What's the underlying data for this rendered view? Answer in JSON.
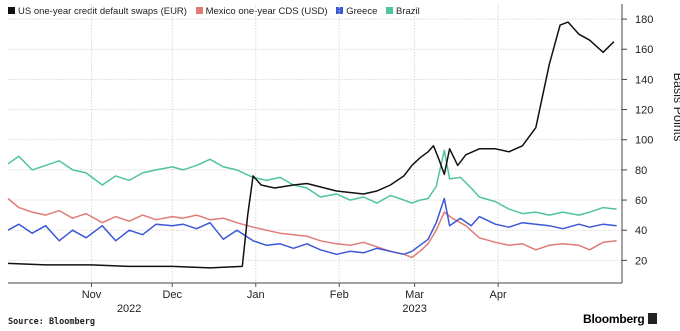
{
  "chart_data": {
    "type": "line",
    "title": "",
    "xlabel": "",
    "ylabel": "Basis Points",
    "ylim": [
      5,
      190
    ],
    "y_ticks": [
      20,
      40,
      60,
      80,
      100,
      120,
      140,
      160,
      180
    ],
    "x_start": "2022-10-01",
    "x_end": "2023-05-17",
    "x_ticks": [
      {
        "date": "2022-11-01",
        "label": "Nov"
      },
      {
        "date": "2022-12-01",
        "label": "Dec"
      },
      {
        "date": "2023-01-01",
        "label": "Jan"
      },
      {
        "date": "2023-02-01",
        "label": "Feb"
      },
      {
        "date": "2023-03-01",
        "label": "Mar"
      },
      {
        "date": "2023-04-01",
        "label": "Apr"
      }
    ],
    "year_labels": [
      {
        "date": "2022-11-15",
        "label": "2022"
      },
      {
        "date": "2023-03-01",
        "label": "2023"
      }
    ],
    "grid": true,
    "legend_position": "top-left",
    "series": [
      {
        "name": "Mexico one-year CDS (USD)",
        "color": "#e07b76",
        "points": [
          [
            "2022-10-01",
            61
          ],
          [
            "2022-10-05",
            55
          ],
          [
            "2022-10-10",
            52
          ],
          [
            "2022-10-15",
            50
          ],
          [
            "2022-10-20",
            53
          ],
          [
            "2022-10-25",
            48
          ],
          [
            "2022-10-30",
            51
          ],
          [
            "2022-11-05",
            45
          ],
          [
            "2022-11-10",
            49
          ],
          [
            "2022-11-15",
            46
          ],
          [
            "2022-11-20",
            50
          ],
          [
            "2022-11-25",
            47
          ],
          [
            "2022-12-01",
            49
          ],
          [
            "2022-12-05",
            48
          ],
          [
            "2022-12-10",
            50
          ],
          [
            "2022-12-15",
            47
          ],
          [
            "2022-12-20",
            48
          ],
          [
            "2022-12-25",
            45
          ],
          [
            "2022-12-31",
            42
          ],
          [
            "2023-01-05",
            40
          ],
          [
            "2023-01-10",
            38
          ],
          [
            "2023-01-15",
            37
          ],
          [
            "2023-01-20",
            36
          ],
          [
            "2023-01-25",
            33
          ],
          [
            "2023-01-31",
            31
          ],
          [
            "2023-02-05",
            30
          ],
          [
            "2023-02-10",
            32
          ],
          [
            "2023-02-15",
            29
          ],
          [
            "2023-02-20",
            26
          ],
          [
            "2023-02-25",
            24
          ],
          [
            "2023-02-28",
            22
          ],
          [
            "2023-03-03",
            26
          ],
          [
            "2023-03-06",
            31
          ],
          [
            "2023-03-09",
            40
          ],
          [
            "2023-03-12",
            52
          ],
          [
            "2023-03-15",
            48
          ],
          [
            "2023-03-20",
            43
          ],
          [
            "2023-03-25",
            35
          ],
          [
            "2023-03-31",
            32
          ],
          [
            "2023-04-05",
            30
          ],
          [
            "2023-04-10",
            31
          ],
          [
            "2023-04-15",
            27
          ],
          [
            "2023-04-20",
            30
          ],
          [
            "2023-04-25",
            31
          ],
          [
            "2023-05-01",
            30
          ],
          [
            "2023-05-05",
            27
          ],
          [
            "2023-05-10",
            32
          ],
          [
            "2023-05-15",
            33
          ]
        ]
      },
      {
        "name": "Greece",
        "color": "#3b57d6",
        "points": [
          [
            "2022-10-01",
            40
          ],
          [
            "2022-10-05",
            44
          ],
          [
            "2022-10-10",
            38
          ],
          [
            "2022-10-15",
            43
          ],
          [
            "2022-10-20",
            33
          ],
          [
            "2022-10-25",
            40
          ],
          [
            "2022-10-30",
            35
          ],
          [
            "2022-11-05",
            43
          ],
          [
            "2022-11-10",
            33
          ],
          [
            "2022-11-15",
            40
          ],
          [
            "2022-11-20",
            37
          ],
          [
            "2022-11-25",
            44
          ],
          [
            "2022-12-01",
            43
          ],
          [
            "2022-12-05",
            44
          ],
          [
            "2022-12-10",
            41
          ],
          [
            "2022-12-15",
            45
          ],
          [
            "2022-12-20",
            34
          ],
          [
            "2022-12-25",
            40
          ],
          [
            "2022-12-31",
            33
          ],
          [
            "2023-01-05",
            30
          ],
          [
            "2023-01-10",
            31
          ],
          [
            "2023-01-15",
            28
          ],
          [
            "2023-01-20",
            31
          ],
          [
            "2023-01-25",
            27
          ],
          [
            "2023-01-31",
            24
          ],
          [
            "2023-02-05",
            26
          ],
          [
            "2023-02-10",
            25
          ],
          [
            "2023-02-15",
            28
          ],
          [
            "2023-02-20",
            26
          ],
          [
            "2023-02-25",
            24
          ],
          [
            "2023-02-28",
            26
          ],
          [
            "2023-03-03",
            30
          ],
          [
            "2023-03-06",
            34
          ],
          [
            "2023-03-09",
            45
          ],
          [
            "2023-03-12",
            61
          ],
          [
            "2023-03-14",
            43
          ],
          [
            "2023-03-18",
            48
          ],
          [
            "2023-03-22",
            43
          ],
          [
            "2023-03-25",
            49
          ],
          [
            "2023-03-31",
            44
          ],
          [
            "2023-04-05",
            42
          ],
          [
            "2023-04-10",
            45
          ],
          [
            "2023-04-15",
            44
          ],
          [
            "2023-04-20",
            43
          ],
          [
            "2023-04-25",
            41
          ],
          [
            "2023-05-01",
            44
          ],
          [
            "2023-05-05",
            42
          ],
          [
            "2023-05-10",
            44
          ],
          [
            "2023-05-15",
            43
          ]
        ]
      },
      {
        "name": "Brazil",
        "color": "#50c49a",
        "points": [
          [
            "2022-10-01",
            84
          ],
          [
            "2022-10-05",
            89
          ],
          [
            "2022-10-10",
            80
          ],
          [
            "2022-10-15",
            83
          ],
          [
            "2022-10-20",
            86
          ],
          [
            "2022-10-25",
            80
          ],
          [
            "2022-10-30",
            78
          ],
          [
            "2022-11-05",
            70
          ],
          [
            "2022-11-10",
            76
          ],
          [
            "2022-11-15",
            73
          ],
          [
            "2022-11-20",
            78
          ],
          [
            "2022-11-25",
            80
          ],
          [
            "2022-12-01",
            82
          ],
          [
            "2022-12-05",
            80
          ],
          [
            "2022-12-10",
            83
          ],
          [
            "2022-12-15",
            87
          ],
          [
            "2022-12-20",
            82
          ],
          [
            "2022-12-25",
            80
          ],
          [
            "2022-12-31",
            75
          ],
          [
            "2023-01-05",
            73
          ],
          [
            "2023-01-10",
            75
          ],
          [
            "2023-01-15",
            70
          ],
          [
            "2023-01-20",
            68
          ],
          [
            "2023-01-25",
            62
          ],
          [
            "2023-01-31",
            64
          ],
          [
            "2023-02-05",
            60
          ],
          [
            "2023-02-10",
            62
          ],
          [
            "2023-02-15",
            58
          ],
          [
            "2023-02-20",
            63
          ],
          [
            "2023-02-25",
            60
          ],
          [
            "2023-02-28",
            58
          ],
          [
            "2023-03-03",
            60
          ],
          [
            "2023-03-06",
            61
          ],
          [
            "2023-03-09",
            69
          ],
          [
            "2023-03-12",
            93
          ],
          [
            "2023-03-14",
            74
          ],
          [
            "2023-03-18",
            75
          ],
          [
            "2023-03-22",
            68
          ],
          [
            "2023-03-25",
            62
          ],
          [
            "2023-03-31",
            59
          ],
          [
            "2023-04-05",
            54
          ],
          [
            "2023-04-10",
            51
          ],
          [
            "2023-04-15",
            52
          ],
          [
            "2023-04-20",
            50
          ],
          [
            "2023-04-25",
            52
          ],
          [
            "2023-05-01",
            50
          ],
          [
            "2023-05-05",
            52
          ],
          [
            "2023-05-10",
            55
          ],
          [
            "2023-05-15",
            54
          ]
        ]
      },
      {
        "name": "US one-year credit default swaps (EUR)",
        "color": "#111111",
        "points": [
          [
            "2022-10-01",
            18
          ],
          [
            "2022-10-15",
            17
          ],
          [
            "2022-11-01",
            17
          ],
          [
            "2022-11-15",
            16
          ],
          [
            "2022-12-01",
            16
          ],
          [
            "2022-12-15",
            15
          ],
          [
            "2022-12-27",
            16
          ],
          [
            "2022-12-29",
            50
          ],
          [
            "2022-12-31",
            76
          ],
          [
            "2023-01-03",
            70
          ],
          [
            "2023-01-08",
            68
          ],
          [
            "2023-01-15",
            70
          ],
          [
            "2023-01-20",
            71
          ],
          [
            "2023-01-31",
            66
          ],
          [
            "2023-02-05",
            65
          ],
          [
            "2023-02-10",
            64
          ],
          [
            "2023-02-15",
            66
          ],
          [
            "2023-02-20",
            70
          ],
          [
            "2023-02-25",
            76
          ],
          [
            "2023-02-28",
            83
          ],
          [
            "2023-03-03",
            88
          ],
          [
            "2023-03-06",
            92
          ],
          [
            "2023-03-08",
            96
          ],
          [
            "2023-03-10",
            87
          ],
          [
            "2023-03-12",
            77
          ],
          [
            "2023-03-14",
            94
          ],
          [
            "2023-03-17",
            83
          ],
          [
            "2023-03-20",
            90
          ],
          [
            "2023-03-25",
            94
          ],
          [
            "2023-03-31",
            94
          ],
          [
            "2023-04-05",
            92
          ],
          [
            "2023-04-10",
            96
          ],
          [
            "2023-04-15",
            108
          ],
          [
            "2023-04-20",
            150
          ],
          [
            "2023-04-24",
            176
          ],
          [
            "2023-04-27",
            178
          ],
          [
            "2023-05-01",
            170
          ],
          [
            "2023-05-05",
            166
          ],
          [
            "2023-05-10",
            158
          ],
          [
            "2023-05-14",
            165
          ]
        ]
      }
    ],
    "legend_order": [
      3,
      0,
      1,
      2
    ]
  },
  "footer": {
    "source": "Source: Bloomberg",
    "brand": "Bloomberg"
  }
}
